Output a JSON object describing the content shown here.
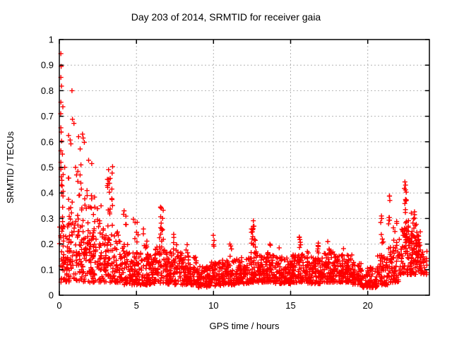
{
  "chart_data": {
    "type": "scatter",
    "title": "Day 203 of 2014, SRMTID for receiver gaia",
    "xlabel": "GPS time / hours",
    "ylabel": "SRMTID / TECUs",
    "xlim": [
      0,
      24
    ],
    "ylim": [
      0,
      1
    ],
    "xticks": {
      "values": [
        0,
        5,
        10,
        15,
        20
      ],
      "labels": [
        "0",
        "5",
        "10",
        "15",
        "20"
      ]
    },
    "yticks": {
      "values": [
        0,
        0.1,
        0.2,
        0.3,
        0.4,
        0.5,
        0.6,
        0.7,
        0.8,
        0.9,
        1
      ],
      "labels": [
        "0",
        "0.1",
        "0.2",
        "0.3",
        "0.4",
        "0.5",
        "0.6",
        "0.7",
        "0.8",
        "0.9",
        "1"
      ]
    },
    "grid": "dotted-major",
    "legend": "none",
    "marker": {
      "shape": "plus",
      "size": 7,
      "color": "#ff0000"
    },
    "colors": {
      "marker": "#ff0000",
      "grid": "#b4b4b4",
      "border": "#000000",
      "text": "#000000"
    },
    "series_name": "SRMTID",
    "seed": 20140203,
    "outlier_points": [
      [
        0.1,
        0.945
      ],
      [
        0.12,
        0.895
      ],
      [
        0.1,
        0.852
      ],
      [
        0.14,
        0.818
      ],
      [
        0.1,
        0.755
      ],
      [
        0.23,
        0.737
      ],
      [
        0.09,
        0.71
      ],
      [
        0.82,
        0.8
      ],
      [
        0.85,
        0.688
      ],
      [
        0.95,
        0.672
      ],
      [
        0.1,
        0.655
      ],
      [
        0.12,
        0.638
      ],
      [
        0.6,
        0.625
      ],
      [
        0.15,
        0.603
      ],
      [
        0.7,
        0.607
      ],
      [
        0.75,
        0.592
      ],
      [
        1.5,
        0.63
      ],
      [
        1.55,
        0.615
      ],
      [
        1.62,
        0.598
      ],
      [
        1.25,
        0.62
      ],
      [
        1.35,
        0.572
      ],
      [
        0.1,
        0.565
      ],
      [
        0.2,
        0.552
      ],
      [
        1.9,
        0.528
      ],
      [
        2.1,
        0.515
      ],
      [
        0.1,
        0.52
      ],
      [
        0.35,
        0.5
      ],
      [
        1.05,
        0.5
      ],
      [
        1.4,
        0.51
      ]
    ],
    "spike_clusters_columns": [
      "x_center",
      "x_width",
      "y_low",
      "y_high",
      "n_points"
    ],
    "spike_clusters": [
      [
        0.15,
        0.2,
        0.3,
        0.5,
        12
      ],
      [
        0.7,
        0.3,
        0.3,
        0.46,
        8
      ],
      [
        1.3,
        0.4,
        0.33,
        0.5,
        10
      ],
      [
        1.8,
        0.3,
        0.3,
        0.44,
        6
      ],
      [
        2.15,
        0.3,
        0.28,
        0.42,
        8
      ],
      [
        2.6,
        0.3,
        0.26,
        0.35,
        6
      ],
      [
        3.3,
        0.4,
        0.4,
        0.505,
        12
      ],
      [
        3.35,
        0.4,
        0.27,
        0.38,
        9
      ],
      [
        4.3,
        0.3,
        0.24,
        0.34,
        5
      ],
      [
        4.95,
        0.35,
        0.2,
        0.3,
        7
      ],
      [
        5.6,
        0.3,
        0.18,
        0.27,
        7
      ],
      [
        6.65,
        0.18,
        0.26,
        0.345,
        9
      ],
      [
        6.6,
        0.3,
        0.2,
        0.27,
        6
      ],
      [
        7.5,
        0.3,
        0.17,
        0.25,
        6
      ],
      [
        8.3,
        0.2,
        0.15,
        0.2,
        4
      ],
      [
        10.0,
        0.1,
        0.185,
        0.24,
        4
      ],
      [
        11.1,
        0.15,
        0.15,
        0.21,
        4
      ],
      [
        12.55,
        0.2,
        0.22,
        0.3,
        9
      ],
      [
        12.6,
        0.35,
        0.16,
        0.23,
        12
      ],
      [
        13.6,
        0.2,
        0.15,
        0.2,
        4
      ],
      [
        14.3,
        0.15,
        0.14,
        0.19,
        3
      ],
      [
        15.6,
        0.15,
        0.17,
        0.245,
        7
      ],
      [
        16.1,
        0.15,
        0.14,
        0.19,
        3
      ],
      [
        16.75,
        0.15,
        0.15,
        0.205,
        6
      ],
      [
        17.5,
        0.2,
        0.15,
        0.21,
        5
      ],
      [
        18.4,
        0.2,
        0.14,
        0.19,
        4
      ],
      [
        20.9,
        0.25,
        0.18,
        0.32,
        7
      ],
      [
        21.38,
        0.12,
        0.27,
        0.39,
        8
      ],
      [
        21.8,
        0.3,
        0.19,
        0.3,
        7
      ],
      [
        22.45,
        0.18,
        0.3,
        0.445,
        13
      ],
      [
        22.55,
        0.35,
        0.2,
        0.32,
        14
      ],
      [
        23.0,
        0.4,
        0.15,
        0.33,
        22
      ],
      [
        23.3,
        0.25,
        0.12,
        0.25,
        10
      ]
    ],
    "band_segments_columns": [
      "t_start",
      "t_end",
      "n_points",
      "y_low",
      "y_high",
      "skew"
    ],
    "band_segments": [
      [
        0.0,
        0.5,
        45,
        0.05,
        0.3,
        1.4
      ],
      [
        0.5,
        1.0,
        45,
        0.05,
        0.3,
        1.4
      ],
      [
        1.0,
        1.5,
        45,
        0.05,
        0.32,
        1.4
      ],
      [
        1.5,
        2.0,
        45,
        0.05,
        0.3,
        1.4
      ],
      [
        2.0,
        2.5,
        45,
        0.05,
        0.28,
        1.4
      ],
      [
        2.5,
        3.0,
        45,
        0.05,
        0.26,
        1.4
      ],
      [
        3.0,
        3.5,
        42,
        0.05,
        0.24,
        1.4
      ],
      [
        3.5,
        4.0,
        42,
        0.05,
        0.25,
        1.4
      ],
      [
        4.0,
        4.5,
        42,
        0.04,
        0.2,
        1.4
      ],
      [
        4.5,
        5.0,
        42,
        0.04,
        0.18,
        1.4
      ],
      [
        5.0,
        6.0,
        88,
        0.04,
        0.17,
        1.5
      ],
      [
        6.0,
        7.0,
        90,
        0.045,
        0.19,
        1.5
      ],
      [
        7.0,
        8.0,
        92,
        0.04,
        0.17,
        1.5
      ],
      [
        8.0,
        9.0,
        92,
        0.04,
        0.15,
        1.5
      ],
      [
        9.0,
        9.7,
        62,
        0.03,
        0.115,
        1.5
      ],
      [
        9.7,
        10.5,
        72,
        0.035,
        0.13,
        1.5
      ],
      [
        10.5,
        11.5,
        92,
        0.04,
        0.14,
        1.5
      ],
      [
        11.5,
        12.3,
        75,
        0.045,
        0.15,
        1.5
      ],
      [
        12.3,
        13.0,
        68,
        0.05,
        0.16,
        1.5
      ],
      [
        13.0,
        14.0,
        92,
        0.05,
        0.16,
        1.5
      ],
      [
        14.0,
        15.0,
        92,
        0.045,
        0.15,
        1.5
      ],
      [
        15.0,
        16.0,
        92,
        0.05,
        0.16,
        1.5
      ],
      [
        16.0,
        17.0,
        92,
        0.045,
        0.15,
        1.5
      ],
      [
        17.0,
        18.0,
        92,
        0.05,
        0.17,
        1.5
      ],
      [
        18.0,
        19.0,
        92,
        0.05,
        0.16,
        1.5
      ],
      [
        19.0,
        19.6,
        55,
        0.04,
        0.13,
        1.5
      ],
      [
        19.6,
        20.6,
        80,
        0.03,
        0.11,
        1.5
      ],
      [
        20.6,
        21.3,
        62,
        0.04,
        0.16,
        1.5
      ],
      [
        21.3,
        22.0,
        62,
        0.05,
        0.19,
        1.4
      ],
      [
        22.0,
        22.8,
        70,
        0.08,
        0.26,
        1.3
      ],
      [
        22.8,
        23.4,
        60,
        0.08,
        0.24,
        1.3
      ],
      [
        23.4,
        23.85,
        28,
        0.08,
        0.18,
        1.4
      ]
    ]
  }
}
